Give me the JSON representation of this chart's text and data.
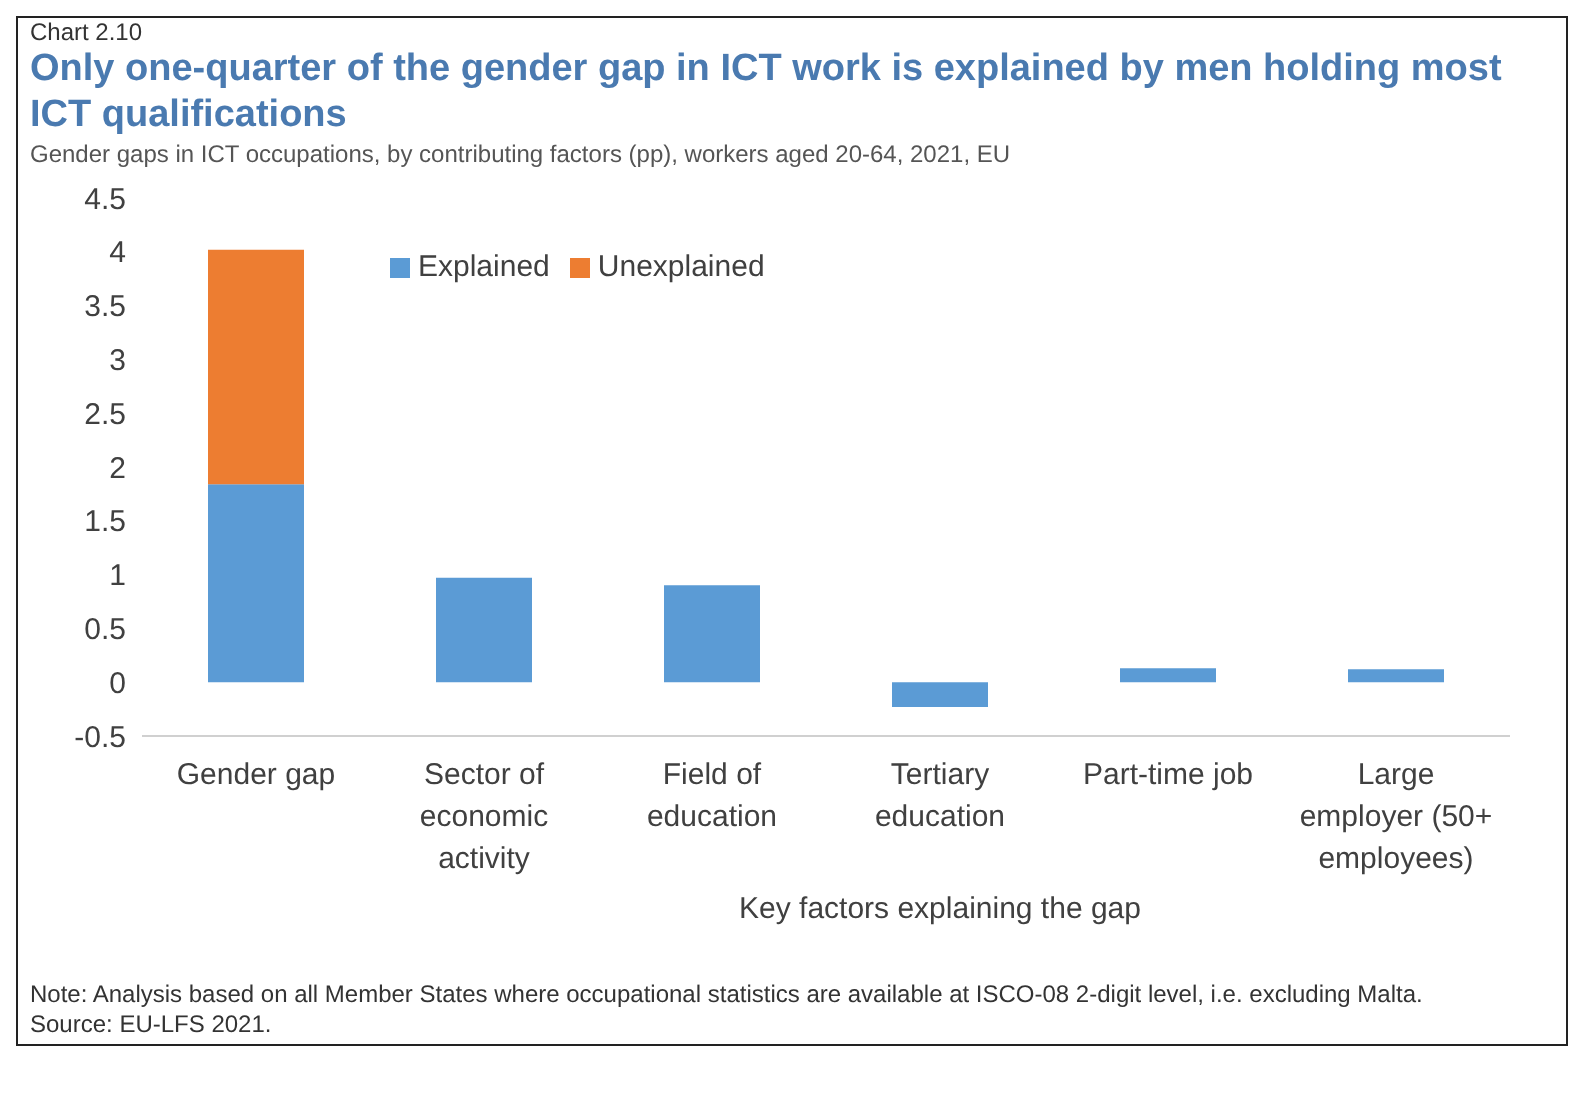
{
  "chart_data": {
    "type": "bar",
    "title": "Only one-quarter of the gender gap in ICT work is explained by men holding most ICT qualifications",
    "subtitle": "Gender gaps in ICT occupations, by contributing factors (pp), workers aged 20-64, 2021, EU",
    "xlabel": "Key factors explaining the gap",
    "categories": [
      "Gender gap",
      "Sector of economic activity",
      "Field of education",
      "Tertiary education",
      "Part-time job",
      "Large employer (50+ employees)"
    ],
    "series": [
      {
        "name": "Explained",
        "color": "#5b9bd5",
        "values": [
          1.84,
          0.97,
          0.9,
          -0.23,
          0.13,
          0.12
        ]
      },
      {
        "name": "Unexplained",
        "color": "#ed7d31",
        "values": [
          2.18,
          null,
          null,
          null,
          null,
          null
        ]
      }
    ],
    "stacked": true,
    "ylim": [
      -0.5,
      4.5
    ],
    "yticks": [
      -0.5,
      0,
      0.5,
      1,
      1.5,
      2,
      2.5,
      3,
      3.5,
      4,
      4.5
    ],
    "grid": false,
    "legend": "top",
    "annotations": [
      "Chart 2.10",
      "Note: Analysis based on all Member States where occupational statistics are available at ISCO-08 2-digit level, i.e. excluding Malta.",
      "Source: EU-LFS 2021."
    ]
  }
}
